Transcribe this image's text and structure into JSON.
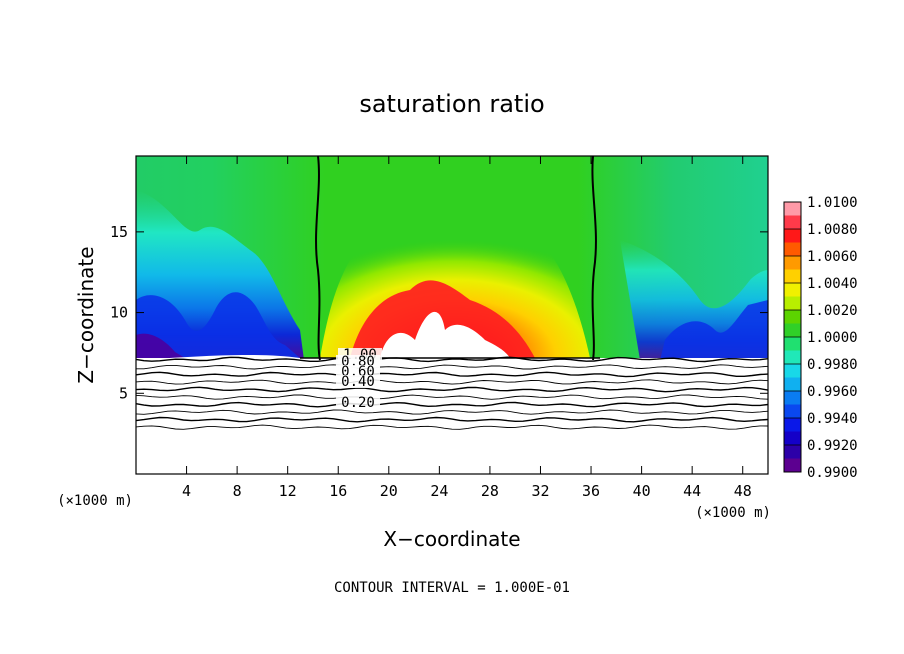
{
  "chart_data": {
    "type": "heatmap",
    "title": "saturation ratio",
    "xlabel": "X−coordinate",
    "ylabel": "Z−coordinate",
    "x_unit": "(×1000 m)",
    "z_unit": "(×1000 m)",
    "x_ticks": [
      4,
      8,
      12,
      16,
      20,
      24,
      28,
      32,
      36,
      40,
      44,
      48
    ],
    "y_ticks": [
      5,
      10,
      15
    ],
    "xlim": [
      0,
      50
    ],
    "ylim": [
      0,
      19.7
    ],
    "colorbar": {
      "labels": [
        "1.0100",
        "1.0080",
        "1.0060",
        "1.0040",
        "1.0020",
        "1.0000",
        "0.9980",
        "0.9960",
        "0.9940",
        "0.9920",
        "0.9900"
      ],
      "colors": [
        "#ff9aa8",
        "#ff3a4a",
        "#ff1818",
        "#ff5a00",
        "#ff9a00",
        "#ffd000",
        "#f0f000",
        "#b8ee00",
        "#5cd400",
        "#30d028",
        "#20e070",
        "#20e8b8",
        "#18d8e8",
        "#10b0f0",
        "#0a7cf2",
        "#0a48f0",
        "#0a18e8",
        "#1400c8",
        "#2c00a8",
        "#5c0090"
      ]
    },
    "contour_labels": [
      "1.00",
      "0.80",
      "0.60",
      "0.40",
      "0.20"
    ],
    "contour_levels": [
      1.0,
      0.9,
      0.8,
      0.7,
      0.6,
      0.5,
      0.4,
      0.3,
      0.2,
      0.1
    ],
    "note": "CONTOUR INTERVAL = 1.000E-01"
  }
}
